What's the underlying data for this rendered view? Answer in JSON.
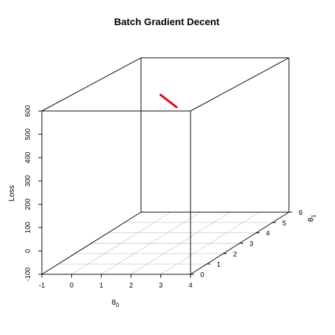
{
  "chart_data": {
    "type": "line",
    "projection": "3d-perspective",
    "title": "Batch Gradient Decent",
    "xlabel": "θ",
    "xlabel_subscript": "0",
    "ylabel": "θ",
    "ylabel_subscript": "1",
    "zlabel": "Loss",
    "xlim": [
      -1,
      4
    ],
    "ylim": [
      0,
      6
    ],
    "zlim": [
      -100,
      600
    ],
    "x_ticks": [
      "-1",
      "0",
      "1",
      "2",
      "3",
      "4"
    ],
    "y_ticks": [
      "0",
      "1",
      "2",
      "3",
      "4",
      "5",
      "6"
    ],
    "z_ticks": [
      "-100",
      "0",
      "100",
      "200",
      "300",
      "400",
      "500",
      "600"
    ],
    "grid": true,
    "box": true,
    "series": [
      {
        "color": "#ee0000",
        "points": [
          {
            "x": 1.0,
            "y": 3.6,
            "z": 530
          },
          {
            "x": 1.15,
            "y": 3.65,
            "z": 510
          },
          {
            "x": 1.3,
            "y": 3.7,
            "z": 490
          },
          {
            "x": 1.45,
            "y": 3.75,
            "z": 470
          }
        ]
      }
    ]
  }
}
